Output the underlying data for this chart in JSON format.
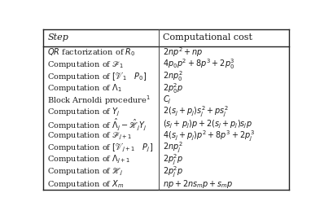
{
  "col_headers": [
    "Step",
    "Computational cost"
  ],
  "rows": [
    [
      "$QR$ factorization of $R_0$",
      "$2np^2 + np$"
    ],
    [
      "Computation of $\\mathscr{F}_1$",
      "$4p_0p^2 + 8p^3 + 2p_0^3$"
    ],
    [
      "Computation of $[\\mathscr{V}_1 \\quad P_0]$",
      "$2np_0^2$"
    ],
    [
      "Computation of $\\Lambda_1$",
      "$2p_0^2p$"
    ],
    [
      "Block Arnoldi procedure$^1$",
      "$C_j$"
    ],
    [
      "Computation of $Y_j$",
      "$2(s_j + p_j)s_j^2 + ps_j^2$"
    ],
    [
      "Computation of $\\hat{\\Lambda}_j - \\hat{\\mathscr{H}}_jY_j$",
      "$(s_j + p_j)p + 2(s_j + p_j)s_jp$"
    ],
    [
      "Computation of $\\mathscr{F}_{j+1}$",
      "$4(s_j + p_j)p^2 + 8p^3 + 2p_j^3$"
    ],
    [
      "Computation of $[\\mathscr{V}_{j+1} \\quad P_j]$",
      "$2np_j^2$"
    ],
    [
      "Computation of $\\Lambda_{j+1}$",
      "$2p_j^2p$"
    ],
    [
      "Computation of $\\mathscr{H}_j$",
      "$2p_j^2p$"
    ],
    [
      "Computation of $X_m$",
      "$np + 2ns_mp + s_mp$"
    ]
  ],
  "bg_color": "#ffffff",
  "text_color": "#1a1a1a",
  "line_color": "#444444",
  "header_line_color": "#222222",
  "font_size": 7.0,
  "header_font_size": 8.0,
  "col_split": 0.47
}
